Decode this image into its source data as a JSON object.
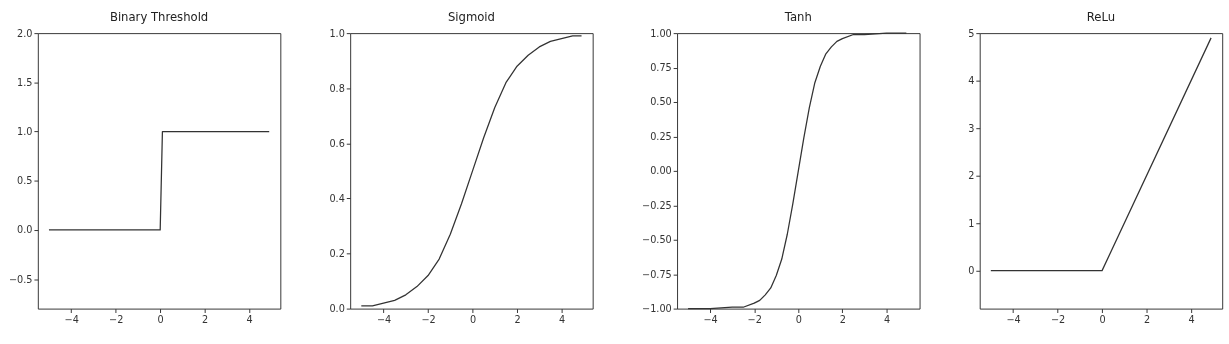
{
  "chart_data": [
    {
      "type": "line",
      "title": "Binary Threshold",
      "color": "#333333",
      "x": [
        -5,
        0,
        0.1,
        4.9
      ],
      "values": [
        0,
        0,
        1,
        1
      ],
      "xlim": [
        -5.5,
        5.4
      ],
      "xticks": [
        -4,
        -2,
        0,
        2,
        4
      ],
      "ylim": [
        -0.8,
        2.0
      ],
      "yticks": [
        -0.5,
        {
          "value": 0,
          "label": "0.0"
        },
        0.5,
        {
          "value": 1,
          "label": "1.0"
        },
        1.5,
        {
          "value": 2,
          "label": "2.0"
        }
      ]
    },
    {
      "type": "line",
      "title": "Sigmoid",
      "color": "#333333",
      "x": [
        -5,
        -4.5,
        -4,
        -3.5,
        -3,
        -2.5,
        -2,
        -1.5,
        -1,
        -0.5,
        0,
        0.5,
        1,
        1.5,
        2,
        2.5,
        3,
        3.5,
        4,
        4.5,
        4.9
      ],
      "values": [
        0.01,
        0.01,
        0.02,
        0.03,
        0.05,
        0.08,
        0.12,
        0.18,
        0.27,
        0.38,
        0.5,
        0.62,
        0.73,
        0.82,
        0.88,
        0.92,
        0.95,
        0.97,
        0.98,
        0.99,
        0.99
      ],
      "xlim": [
        -5.5,
        5.4
      ],
      "xticks": [
        -4,
        -2,
        0,
        2,
        4
      ],
      "ylim": [
        0,
        1
      ],
      "yticks": [
        {
          "value": 0,
          "label": "0.0"
        },
        0.2,
        0.4,
        0.6,
        0.8,
        {
          "value": 1,
          "label": "1.0"
        }
      ]
    },
    {
      "type": "line",
      "title": "Tanh",
      "color": "#333333",
      "x": [
        -5,
        -4,
        -3,
        -2.5,
        -2,
        -1.75,
        -1.5,
        -1.25,
        -1,
        -0.75,
        -0.5,
        -0.25,
        0,
        0.25,
        0.5,
        0.75,
        1,
        1.25,
        1.5,
        1.75,
        2,
        2.5,
        3,
        4,
        4.9
      ],
      "values": [
        -1.0,
        -1.0,
        -0.99,
        -0.99,
        -0.96,
        -0.94,
        -0.9,
        -0.85,
        -0.76,
        -0.64,
        -0.46,
        -0.24,
        0,
        0.24,
        0.46,
        0.64,
        0.76,
        0.85,
        0.9,
        0.94,
        0.96,
        0.99,
        0.99,
        1.0,
        1.0
      ],
      "xlim": [
        -5.5,
        5.5
      ],
      "xticks": [
        -4,
        -2,
        0,
        2,
        4
      ],
      "ylim": [
        -1,
        1
      ],
      "yticks": [
        {
          "value": -1,
          "label": "−1.00"
        },
        {
          "value": -0.75,
          "label": "−0.75"
        },
        {
          "value": -0.5,
          "label": "−0.50"
        },
        {
          "value": -0.25,
          "label": "−0.25"
        },
        {
          "value": 0,
          "label": "0.00"
        },
        0.25,
        {
          "value": 0.5,
          "label": "0.50"
        },
        0.75,
        {
          "value": 1,
          "label": "1.00"
        }
      ]
    },
    {
      "type": "line",
      "title": "ReLu",
      "color": "#333333",
      "x": [
        -5,
        0,
        4.9
      ],
      "values": [
        0,
        0,
        4.9
      ],
      "xlim": [
        -5.5,
        5.4
      ],
      "xticks": [
        -4,
        -2,
        0,
        2,
        4
      ],
      "ylim": [
        -0.8,
        5
      ],
      "yticks": [
        0,
        1,
        2,
        3,
        4,
        5
      ]
    }
  ]
}
